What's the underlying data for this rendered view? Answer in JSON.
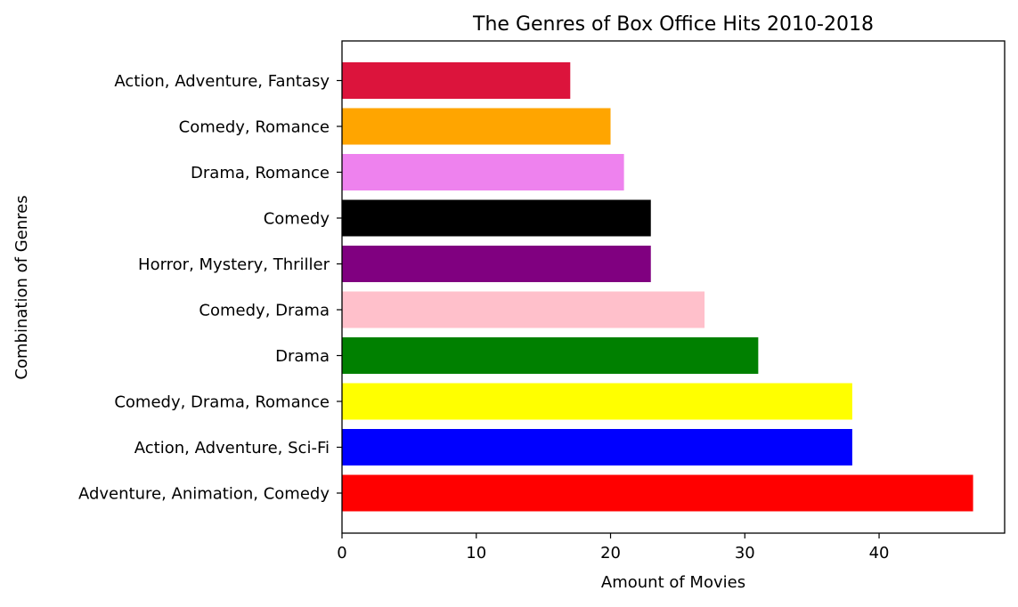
{
  "chart_data": {
    "type": "bar",
    "orientation": "horizontal",
    "title": "The Genres of Box Office Hits 2010-2018",
    "xlabel": "Amount of Movies",
    "ylabel": "Combination of Genres",
    "xlim": [
      0,
      49.35
    ],
    "x_ticks": [
      0,
      10,
      20,
      30,
      40
    ],
    "grid": false,
    "categories": [
      "Adventure, Animation, Comedy",
      "Action, Adventure, Sci-Fi",
      "Comedy, Drama, Romance",
      "Drama",
      "Comedy, Drama",
      "Horror, Mystery, Thriller",
      "Comedy",
      "Drama, Romance",
      "Comedy, Romance",
      "Action, Adventure, Fantasy"
    ],
    "values": [
      47,
      38,
      38,
      31,
      27,
      23,
      23,
      21,
      20,
      17
    ],
    "colors": [
      "#ff0000",
      "#0000ff",
      "#ffff00",
      "#008000",
      "#ffc0cb",
      "#800080",
      "#000000",
      "#ee82ee",
      "#ffa500",
      "#dc143c"
    ]
  }
}
